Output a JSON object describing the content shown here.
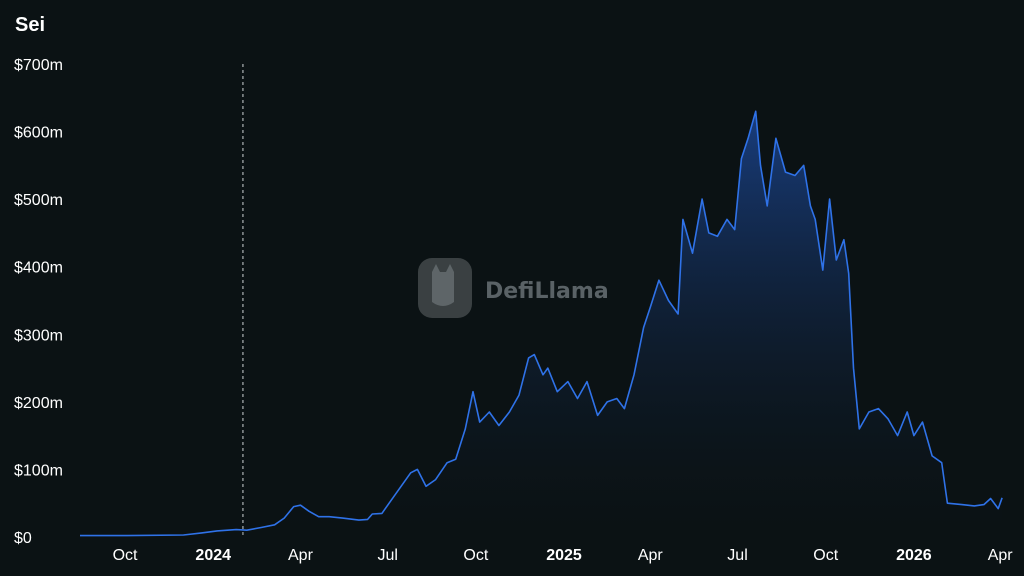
{
  "chart_data": {
    "type": "area",
    "title": "Sei",
    "ylim": [
      0,
      700
    ],
    "yticks": [
      {
        "value": 0,
        "label": "$0"
      },
      {
        "value": 100,
        "label": "$100m"
      },
      {
        "value": 200,
        "label": "$200m"
      },
      {
        "value": 300,
        "label": "$300m"
      },
      {
        "value": 400,
        "label": "$400m"
      },
      {
        "value": 500,
        "label": "$500m"
      },
      {
        "value": 600,
        "label": "$600m"
      },
      {
        "value": 700,
        "label": "$700m"
      }
    ],
    "xlim": [
      "2023-08-15",
      "2026-04-05"
    ],
    "xticks": [
      {
        "date": "2023-10-01",
        "label": "Oct",
        "bold": false
      },
      {
        "date": "2024-01-01",
        "label": "2024",
        "bold": true
      },
      {
        "date": "2024-04-01",
        "label": "Apr",
        "bold": false
      },
      {
        "date": "2024-07-01",
        "label": "Jul",
        "bold": false
      },
      {
        "date": "2024-10-01",
        "label": "Oct",
        "bold": false
      },
      {
        "date": "2025-01-01",
        "label": "2025",
        "bold": true
      },
      {
        "date": "2025-04-01",
        "label": "Apr",
        "bold": false
      },
      {
        "date": "2025-07-01",
        "label": "Jul",
        "bold": false
      },
      {
        "date": "2025-10-01",
        "label": "Oct",
        "bold": false
      },
      {
        "date": "2026-01-01",
        "label": "2026",
        "bold": true
      },
      {
        "date": "2026-04-01",
        "label": "Apr",
        "bold": false
      }
    ],
    "marker_date": "2024-02-01",
    "grid": false,
    "colors": {
      "line": "#2f72e8",
      "fill_top": "#1b4591",
      "background": "#0b1214"
    },
    "series": [
      {
        "values": [
          [
            "2023-08-15",
            2
          ],
          [
            "2023-10-01",
            2
          ],
          [
            "2023-12-01",
            3
          ],
          [
            "2023-12-20",
            6
          ],
          [
            "2024-01-05",
            9
          ],
          [
            "2024-01-25",
            11
          ],
          [
            "2024-02-05",
            10
          ],
          [
            "2024-02-20",
            14
          ],
          [
            "2024-03-05",
            18
          ],
          [
            "2024-03-15",
            28
          ],
          [
            "2024-03-25",
            45
          ],
          [
            "2024-04-01",
            47
          ],
          [
            "2024-04-10",
            38
          ],
          [
            "2024-04-20",
            30
          ],
          [
            "2024-05-01",
            30
          ],
          [
            "2024-05-15",
            28
          ],
          [
            "2024-06-01",
            25
          ],
          [
            "2024-06-10",
            26
          ],
          [
            "2024-06-15",
            34
          ],
          [
            "2024-06-25",
            35
          ],
          [
            "2024-07-05",
            55
          ],
          [
            "2024-07-15",
            75
          ],
          [
            "2024-07-25",
            95
          ],
          [
            "2024-08-01",
            100
          ],
          [
            "2024-08-10",
            75
          ],
          [
            "2024-08-20",
            85
          ],
          [
            "2024-09-01",
            110
          ],
          [
            "2024-09-10",
            115
          ],
          [
            "2024-09-20",
            160
          ],
          [
            "2024-09-28",
            215
          ],
          [
            "2024-10-05",
            170
          ],
          [
            "2024-10-15",
            185
          ],
          [
            "2024-10-25",
            165
          ],
          [
            "2024-11-05",
            185
          ],
          [
            "2024-11-15",
            210
          ],
          [
            "2024-11-25",
            265
          ],
          [
            "2024-12-01",
            270
          ],
          [
            "2024-12-10",
            240
          ],
          [
            "2024-12-15",
            250
          ],
          [
            "2024-12-25",
            215
          ],
          [
            "2025-01-05",
            230
          ],
          [
            "2025-01-15",
            205
          ],
          [
            "2025-01-25",
            230
          ],
          [
            "2025-02-05",
            180
          ],
          [
            "2025-02-15",
            200
          ],
          [
            "2025-02-25",
            205
          ],
          [
            "2025-03-05",
            190
          ],
          [
            "2025-03-15",
            240
          ],
          [
            "2025-03-25",
            310
          ],
          [
            "2025-04-01",
            340
          ],
          [
            "2025-04-10",
            380
          ],
          [
            "2025-04-20",
            350
          ],
          [
            "2025-04-30",
            330
          ],
          [
            "2025-05-05",
            470
          ],
          [
            "2025-05-15",
            420
          ],
          [
            "2025-05-25",
            500
          ],
          [
            "2025-06-01",
            450
          ],
          [
            "2025-06-10",
            445
          ],
          [
            "2025-06-20",
            470
          ],
          [
            "2025-06-28",
            455
          ],
          [
            "2025-07-05",
            560
          ],
          [
            "2025-07-12",
            590
          ],
          [
            "2025-07-20",
            630
          ],
          [
            "2025-07-25",
            550
          ],
          [
            "2025-08-01",
            490
          ],
          [
            "2025-08-10",
            590
          ],
          [
            "2025-08-20",
            540
          ],
          [
            "2025-08-30",
            535
          ],
          [
            "2025-09-08",
            550
          ],
          [
            "2025-09-15",
            490
          ],
          [
            "2025-09-20",
            470
          ],
          [
            "2025-09-28",
            395
          ],
          [
            "2025-10-05",
            500
          ],
          [
            "2025-10-12",
            410
          ],
          [
            "2025-10-20",
            440
          ],
          [
            "2025-10-25",
            390
          ],
          [
            "2025-10-30",
            250
          ],
          [
            "2025-11-05",
            160
          ],
          [
            "2025-11-15",
            185
          ],
          [
            "2025-11-25",
            190
          ],
          [
            "2025-12-05",
            175
          ],
          [
            "2025-12-15",
            150
          ],
          [
            "2025-12-25",
            185
          ],
          [
            "2026-01-01",
            150
          ],
          [
            "2026-01-10",
            170
          ],
          [
            "2026-01-20",
            120
          ],
          [
            "2026-01-30",
            110
          ],
          [
            "2026-02-05",
            50
          ],
          [
            "2026-02-20",
            48
          ],
          [
            "2026-03-05",
            46
          ],
          [
            "2026-03-15",
            48
          ],
          [
            "2026-03-22",
            57
          ],
          [
            "2026-03-30",
            42
          ],
          [
            "2026-04-03",
            58
          ]
        ]
      }
    ]
  },
  "watermark": {
    "text": "DefiLlama"
  }
}
